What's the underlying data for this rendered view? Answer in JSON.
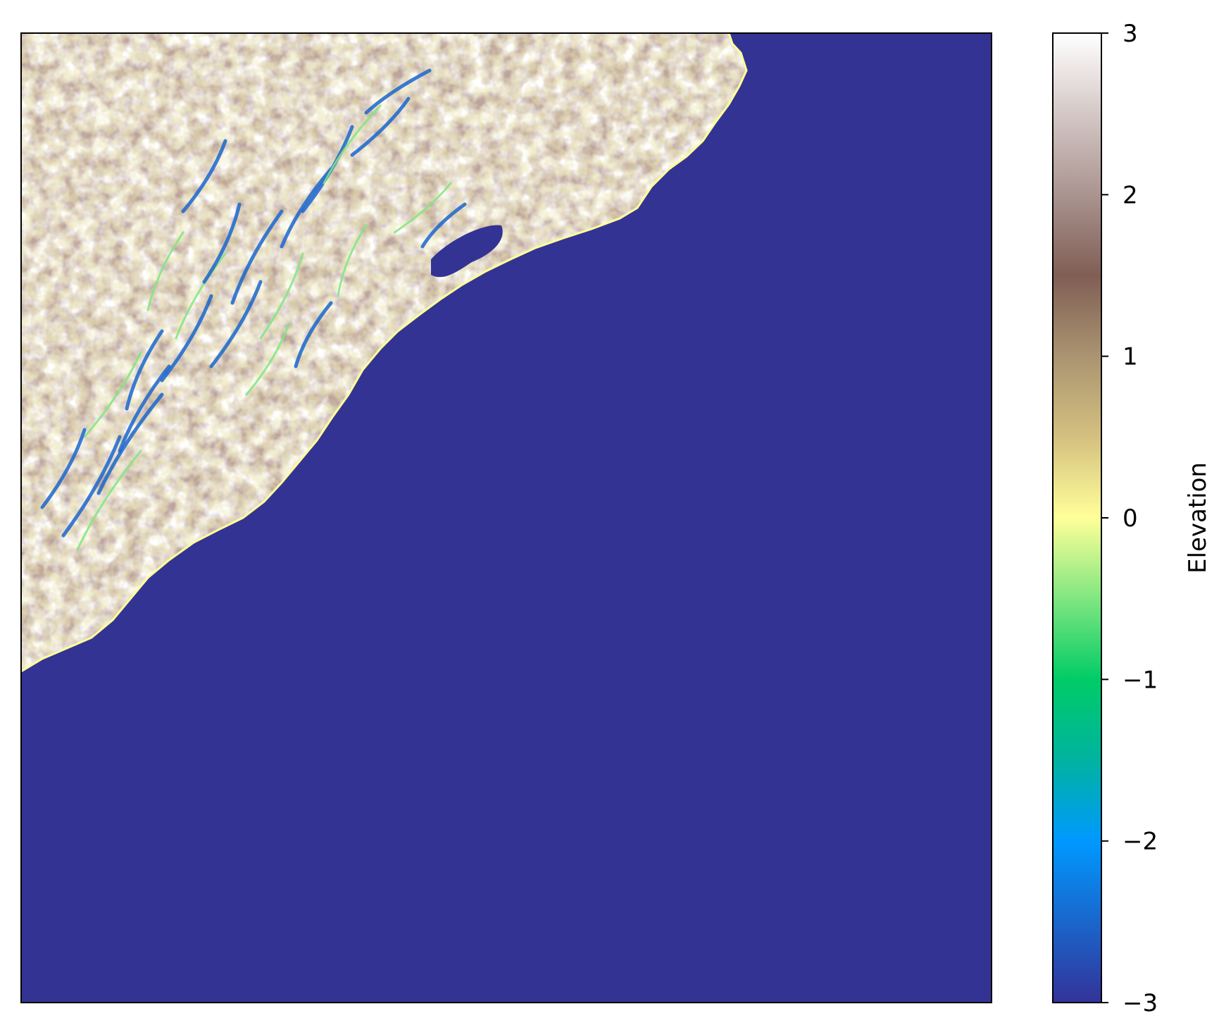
{
  "map": {
    "colormap_name": "terrain",
    "ocean_color": "#333394",
    "shoreline_color": "#ffff99",
    "land_low_color": "#d8c77f",
    "land_mid_color": "#7f5f53",
    "land_high_color": "#ffffff"
  },
  "colorbar": {
    "label": "Elevation",
    "min": -3,
    "max": 3,
    "ticks": [
      {
        "value": 3,
        "label": "3"
      },
      {
        "value": 2,
        "label": "2"
      },
      {
        "value": 1,
        "label": "1"
      },
      {
        "value": 0,
        "label": "0"
      },
      {
        "value": -1,
        "label": "−1"
      },
      {
        "value": -2,
        "label": "−2"
      },
      {
        "value": -3,
        "label": "−3"
      }
    ],
    "stops": [
      {
        "value": -3.0,
        "color": "#333399"
      },
      {
        "value": -2.5,
        "color": "#1a66cc"
      },
      {
        "value": -2.0,
        "color": "#0099ff"
      },
      {
        "value": -1.5,
        "color": "#00b3a0"
      },
      {
        "value": -1.0,
        "color": "#00cc66"
      },
      {
        "value": -0.5,
        "color": "#80e680"
      },
      {
        "value": 0.0,
        "color": "#ffff99"
      },
      {
        "value": 0.5,
        "color": "#d4c080"
      },
      {
        "value": 1.0,
        "color": "#aa9471"
      },
      {
        "value": 1.5,
        "color": "#805e54"
      },
      {
        "value": 2.0,
        "color": "#aa9490"
      },
      {
        "value": 2.5,
        "color": "#d4c8c6"
      },
      {
        "value": 3.0,
        "color": "#ffffff"
      }
    ]
  }
}
